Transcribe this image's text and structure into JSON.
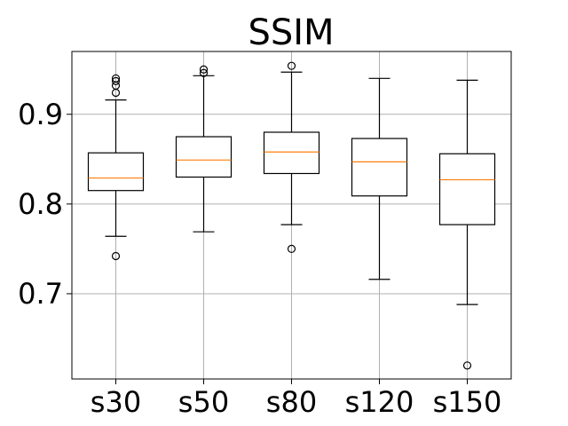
{
  "chart_data": {
    "type": "box",
    "title": "SSIM",
    "xlabel": "",
    "ylabel": "",
    "ylim": [
      0.605,
      0.97
    ],
    "yticks": [
      0.7,
      0.8,
      0.9
    ],
    "ytick_labels": [
      "0.7",
      "0.8",
      "0.9"
    ],
    "grid": true,
    "categories": [
      "s30",
      "s50",
      "s80",
      "s120",
      "s150"
    ],
    "boxes": [
      {
        "q1": 0.815,
        "median": 0.829,
        "q3": 0.857,
        "whisker_low": 0.764,
        "whisker_high": 0.916,
        "outliers": [
          0.742,
          0.924,
          0.932,
          0.937,
          0.94
        ]
      },
      {
        "q1": 0.83,
        "median": 0.849,
        "q3": 0.875,
        "whisker_low": 0.769,
        "whisker_high": 0.943,
        "outliers": [
          0.946,
          0.95
        ]
      },
      {
        "q1": 0.834,
        "median": 0.858,
        "q3": 0.88,
        "whisker_low": 0.777,
        "whisker_high": 0.947,
        "outliers": [
          0.75,
          0.954
        ]
      },
      {
        "q1": 0.809,
        "median": 0.847,
        "q3": 0.873,
        "whisker_low": 0.716,
        "whisker_high": 0.94,
        "outliers": []
      },
      {
        "q1": 0.777,
        "median": 0.827,
        "q3": 0.856,
        "whisker_low": 0.688,
        "whisker_high": 0.938,
        "outliers": [
          0.62
        ]
      }
    ],
    "colors": {
      "box": "#000000",
      "median": "#ff7f0e",
      "grid": "#b0b0b0",
      "axes": "#000000"
    }
  }
}
